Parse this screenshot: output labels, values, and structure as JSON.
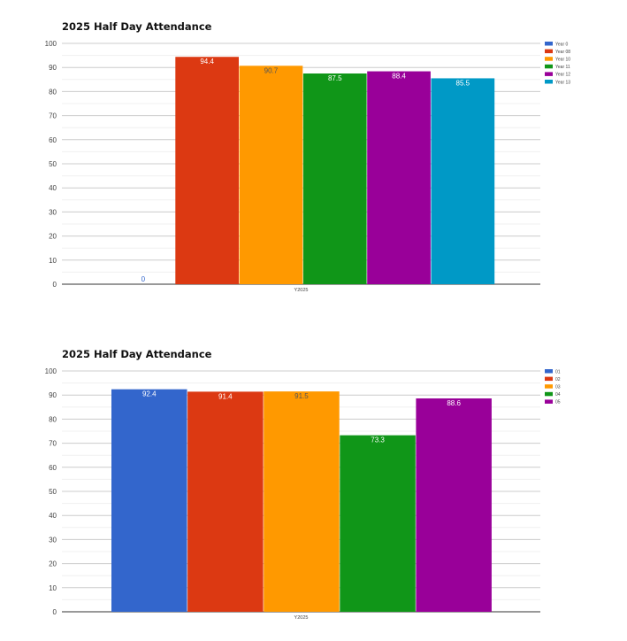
{
  "chart_data": [
    {
      "type": "bar",
      "title": "2025 Half Day Attendance",
      "categories": [
        "Y2025"
      ],
      "series": [
        {
          "name": "Year 0",
          "values": [
            0
          ],
          "color": "#3366cc",
          "label_color": "#3366cc"
        },
        {
          "name": "Year 08",
          "values": [
            94.4
          ],
          "color": "#dc3912",
          "label_color": "#ffffff"
        },
        {
          "name": "Year 10",
          "values": [
            90.7
          ],
          "color": "#ff9900",
          "label_color": "#555555"
        },
        {
          "name": "Year 11",
          "values": [
            87.5
          ],
          "color": "#109618",
          "label_color": "#ffffff"
        },
        {
          "name": "Year 12",
          "values": [
            88.4
          ],
          "color": "#990099",
          "label_color": "#ffffff"
        },
        {
          "name": "Year 13",
          "values": [
            85.5
          ],
          "color": "#0099c6",
          "label_color": "#ffffff"
        }
      ],
      "ylim": [
        0,
        100
      ],
      "yticks": [
        0,
        10,
        20,
        30,
        40,
        50,
        60,
        70,
        80,
        90,
        100
      ],
      "grid": true,
      "legend": "top-right"
    },
    {
      "type": "bar",
      "title": "2025 Half Day Attendance",
      "categories": [
        "Y2025"
      ],
      "series": [
        {
          "name": "01",
          "values": [
            92.4
          ],
          "color": "#3366cc",
          "label_color": "#ffffff"
        },
        {
          "name": "02",
          "values": [
            91.4
          ],
          "color": "#dc3912",
          "label_color": "#ffffff"
        },
        {
          "name": "03",
          "values": [
            91.5
          ],
          "color": "#ff9900",
          "label_color": "#555555"
        },
        {
          "name": "04",
          "values": [
            73.3
          ],
          "color": "#109618",
          "label_color": "#ffffff"
        },
        {
          "name": "05",
          "values": [
            88.6
          ],
          "color": "#990099",
          "label_color": "#ffffff"
        }
      ],
      "ylim": [
        0,
        100
      ],
      "yticks": [
        0,
        10,
        20,
        30,
        40,
        50,
        60,
        70,
        80,
        90,
        100
      ],
      "grid": true,
      "legend": "top-right"
    }
  ]
}
